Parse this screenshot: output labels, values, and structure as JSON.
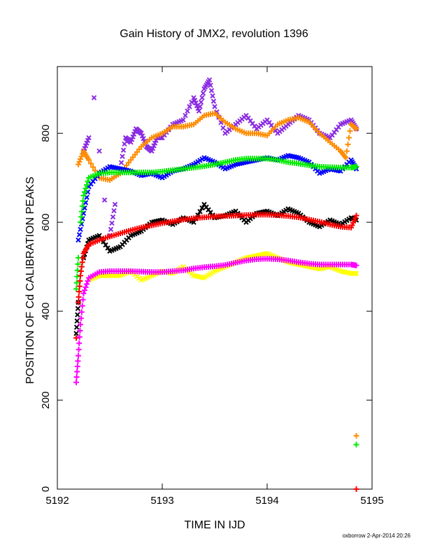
{
  "chart_data": {
    "type": "scatter",
    "title": "Gain History of JMX2, revolution 1396",
    "xlabel": "TIME IN IJD",
    "ylabel": "POSITION OF Cd CALIBRATION PEAKS",
    "xlim": [
      5192,
      5195
    ],
    "ylim": [
      0,
      950
    ],
    "x_ticks": [
      "5192",
      "5193",
      "5194",
      "5195"
    ],
    "y_ticks": [
      "0",
      "200",
      "400",
      "600",
      "800"
    ],
    "grid": false,
    "legend": "none",
    "series": [
      {
        "color": "#8a2be2",
        "marker": "x",
        "points": [
          [
            5192.25,
            760
          ],
          [
            5192.3,
            790
          ],
          [
            5192.35,
            880
          ],
          [
            5192.4,
            760
          ],
          [
            5192.45,
            650
          ],
          [
            5192.5,
            570
          ],
          [
            5192.55,
            640
          ],
          [
            5192.6,
            720
          ],
          [
            5192.65,
            790
          ],
          [
            5192.7,
            780
          ],
          [
            5192.75,
            810
          ],
          [
            5192.8,
            800
          ],
          [
            5192.85,
            770
          ],
          [
            5192.9,
            760
          ],
          [
            5192.95,
            790
          ],
          [
            5193.0,
            790
          ],
          [
            5193.1,
            820
          ],
          [
            5193.2,
            830
          ],
          [
            5193.3,
            880
          ],
          [
            5193.35,
            850
          ],
          [
            5193.4,
            900
          ],
          [
            5193.45,
            920
          ],
          [
            5193.5,
            860
          ],
          [
            5193.6,
            800
          ],
          [
            5193.7,
            820
          ],
          [
            5193.8,
            840
          ],
          [
            5193.9,
            810
          ],
          [
            5194.0,
            830
          ],
          [
            5194.1,
            800
          ],
          [
            5194.2,
            820
          ],
          [
            5194.3,
            840
          ],
          [
            5194.4,
            830
          ],
          [
            5194.5,
            800
          ],
          [
            5194.6,
            790
          ],
          [
            5194.7,
            820
          ],
          [
            5194.8,
            830
          ],
          [
            5194.85,
            810
          ]
        ]
      },
      {
        "color": "#ff8c00",
        "marker": "+",
        "points": [
          [
            5192.2,
            730
          ],
          [
            5192.25,
            760
          ],
          [
            5192.3,
            740
          ],
          [
            5192.4,
            700
          ],
          [
            5192.5,
            695
          ],
          [
            5192.6,
            710
          ],
          [
            5192.7,
            740
          ],
          [
            5192.8,
            770
          ],
          [
            5192.9,
            790
          ],
          [
            5193.0,
            800
          ],
          [
            5193.1,
            815
          ],
          [
            5193.2,
            815
          ],
          [
            5193.3,
            820
          ],
          [
            5193.4,
            840
          ],
          [
            5193.5,
            845
          ],
          [
            5193.6,
            825
          ],
          [
            5193.7,
            810
          ],
          [
            5193.8,
            800
          ],
          [
            5193.9,
            800
          ],
          [
            5194.0,
            795
          ],
          [
            5194.1,
            820
          ],
          [
            5194.2,
            830
          ],
          [
            5194.3,
            835
          ],
          [
            5194.4,
            825
          ],
          [
            5194.5,
            800
          ],
          [
            5194.6,
            780
          ],
          [
            5194.7,
            760
          ],
          [
            5194.75,
            745
          ],
          [
            5194.8,
            820
          ],
          [
            5194.85,
            810
          ],
          [
            5194.85,
            120
          ]
        ]
      },
      {
        "color": "#0000ff",
        "marker": "x",
        "points": [
          [
            5192.2,
            560
          ],
          [
            5192.25,
            620
          ],
          [
            5192.3,
            680
          ],
          [
            5192.4,
            710
          ],
          [
            5192.5,
            725
          ],
          [
            5192.6,
            720
          ],
          [
            5192.7,
            715
          ],
          [
            5192.8,
            705
          ],
          [
            5192.9,
            710
          ],
          [
            5193.0,
            700
          ],
          [
            5193.1,
            715
          ],
          [
            5193.2,
            720
          ],
          [
            5193.3,
            730
          ],
          [
            5193.4,
            745
          ],
          [
            5193.5,
            735
          ],
          [
            5193.6,
            720
          ],
          [
            5193.7,
            730
          ],
          [
            5193.8,
            735
          ],
          [
            5193.9,
            740
          ],
          [
            5194.0,
            745
          ],
          [
            5194.1,
            740
          ],
          [
            5194.2,
            750
          ],
          [
            5194.3,
            745
          ],
          [
            5194.4,
            735
          ],
          [
            5194.5,
            710
          ],
          [
            5194.6,
            720
          ],
          [
            5194.7,
            715
          ],
          [
            5194.8,
            740
          ],
          [
            5194.85,
            720
          ]
        ]
      },
      {
        "color": "#00ee00",
        "marker": "+",
        "points": [
          [
            5192.18,
            450
          ],
          [
            5192.2,
            520
          ],
          [
            5192.22,
            600
          ],
          [
            5192.25,
            660
          ],
          [
            5192.3,
            700
          ],
          [
            5192.4,
            710
          ],
          [
            5192.5,
            712
          ],
          [
            5192.6,
            712
          ],
          [
            5192.7,
            712
          ],
          [
            5192.8,
            712
          ],
          [
            5192.9,
            712
          ],
          [
            5193.0,
            714
          ],
          [
            5193.1,
            717
          ],
          [
            5193.2,
            720
          ],
          [
            5193.3,
            723
          ],
          [
            5193.4,
            726
          ],
          [
            5193.5,
            730
          ],
          [
            5193.6,
            735
          ],
          [
            5193.7,
            740
          ],
          [
            5193.8,
            743
          ],
          [
            5193.9,
            743
          ],
          [
            5194.0,
            743
          ],
          [
            5194.1,
            740
          ],
          [
            5194.2,
            735
          ],
          [
            5194.3,
            732
          ],
          [
            5194.4,
            728
          ],
          [
            5194.5,
            725
          ],
          [
            5194.6,
            724
          ],
          [
            5194.7,
            723
          ],
          [
            5194.8,
            723
          ],
          [
            5194.85,
            725
          ],
          [
            5194.85,
            100
          ]
        ]
      },
      {
        "color": "#000000",
        "marker": "x",
        "points": [
          [
            5192.18,
            350
          ],
          [
            5192.2,
            420
          ],
          [
            5192.25,
            520
          ],
          [
            5192.3,
            560
          ],
          [
            5192.4,
            570
          ],
          [
            5192.5,
            535
          ],
          [
            5192.6,
            545
          ],
          [
            5192.7,
            570
          ],
          [
            5192.8,
            580
          ],
          [
            5192.9,
            600
          ],
          [
            5193.0,
            605
          ],
          [
            5193.1,
            595
          ],
          [
            5193.2,
            610
          ],
          [
            5193.3,
            600
          ],
          [
            5193.4,
            640
          ],
          [
            5193.5,
            610
          ],
          [
            5193.6,
            615
          ],
          [
            5193.7,
            625
          ],
          [
            5193.8,
            600
          ],
          [
            5193.9,
            620
          ],
          [
            5194.0,
            625
          ],
          [
            5194.1,
            615
          ],
          [
            5194.2,
            630
          ],
          [
            5194.3,
            620
          ],
          [
            5194.4,
            600
          ],
          [
            5194.5,
            590
          ],
          [
            5194.6,
            605
          ],
          [
            5194.7,
            595
          ],
          [
            5194.8,
            610
          ],
          [
            5194.85,
            605
          ]
        ]
      },
      {
        "color": "#ff0000",
        "marker": "+",
        "points": [
          [
            5192.18,
            340
          ],
          [
            5192.2,
            420
          ],
          [
            5192.22,
            480
          ],
          [
            5192.25,
            530
          ],
          [
            5192.3,
            550
          ],
          [
            5192.4,
            560
          ],
          [
            5192.5,
            568
          ],
          [
            5192.6,
            575
          ],
          [
            5192.7,
            582
          ],
          [
            5192.8,
            588
          ],
          [
            5192.9,
            593
          ],
          [
            5193.0,
            598
          ],
          [
            5193.1,
            602
          ],
          [
            5193.2,
            606
          ],
          [
            5193.3,
            609
          ],
          [
            5193.4,
            611
          ],
          [
            5193.5,
            613
          ],
          [
            5193.6,
            614
          ],
          [
            5193.7,
            615
          ],
          [
            5193.8,
            616
          ],
          [
            5193.9,
            617
          ],
          [
            5194.0,
            617
          ],
          [
            5194.1,
            616
          ],
          [
            5194.2,
            614
          ],
          [
            5194.3,
            611
          ],
          [
            5194.4,
            606
          ],
          [
            5194.5,
            601
          ],
          [
            5194.6,
            595
          ],
          [
            5194.7,
            590
          ],
          [
            5194.8,
            588
          ],
          [
            5194.85,
            615
          ],
          [
            5194.85,
            0
          ]
        ]
      },
      {
        "color": "#ffff00",
        "marker": "x",
        "points": [
          [
            5192.3,
            470
          ],
          [
            5192.4,
            480
          ],
          [
            5192.5,
            480
          ],
          [
            5192.6,
            480
          ],
          [
            5192.7,
            490
          ],
          [
            5192.8,
            470
          ],
          [
            5192.9,
            480
          ],
          [
            5193.0,
            490
          ],
          [
            5193.1,
            485
          ],
          [
            5193.2,
            500
          ],
          [
            5193.3,
            480
          ],
          [
            5193.4,
            475
          ],
          [
            5193.5,
            490
          ],
          [
            5193.6,
            500
          ],
          [
            5193.7,
            510
          ],
          [
            5193.8,
            520
          ],
          [
            5193.9,
            525
          ],
          [
            5194.0,
            530
          ],
          [
            5194.1,
            520
          ],
          [
            5194.2,
            510
          ],
          [
            5194.3,
            505
          ],
          [
            5194.4,
            500
          ],
          [
            5194.5,
            495
          ],
          [
            5194.6,
            500
          ],
          [
            5194.7,
            490
          ],
          [
            5194.8,
            485
          ],
          [
            5194.85,
            485
          ]
        ]
      },
      {
        "color": "#ff00ff",
        "marker": "+",
        "points": [
          [
            5192.18,
            240
          ],
          [
            5192.2,
            300
          ],
          [
            5192.22,
            370
          ],
          [
            5192.25,
            440
          ],
          [
            5192.3,
            475
          ],
          [
            5192.4,
            488
          ],
          [
            5192.5,
            490
          ],
          [
            5192.6,
            490
          ],
          [
            5192.7,
            490
          ],
          [
            5192.8,
            489
          ],
          [
            5192.9,
            488
          ],
          [
            5193.0,
            488
          ],
          [
            5193.1,
            490
          ],
          [
            5193.2,
            492
          ],
          [
            5193.3,
            496
          ],
          [
            5193.4,
            499
          ],
          [
            5193.5,
            501
          ],
          [
            5193.6,
            504
          ],
          [
            5193.7,
            509
          ],
          [
            5193.8,
            514
          ],
          [
            5193.9,
            517
          ],
          [
            5194.0,
            518
          ],
          [
            5194.1,
            517
          ],
          [
            5194.2,
            514
          ],
          [
            5194.3,
            510
          ],
          [
            5194.4,
            507
          ],
          [
            5194.5,
            505
          ],
          [
            5194.6,
            505
          ],
          [
            5194.7,
            505
          ],
          [
            5194.8,
            505
          ],
          [
            5194.85,
            503
          ]
        ]
      }
    ]
  },
  "footer": "oxborrow  2-Apr-2014 20:26"
}
